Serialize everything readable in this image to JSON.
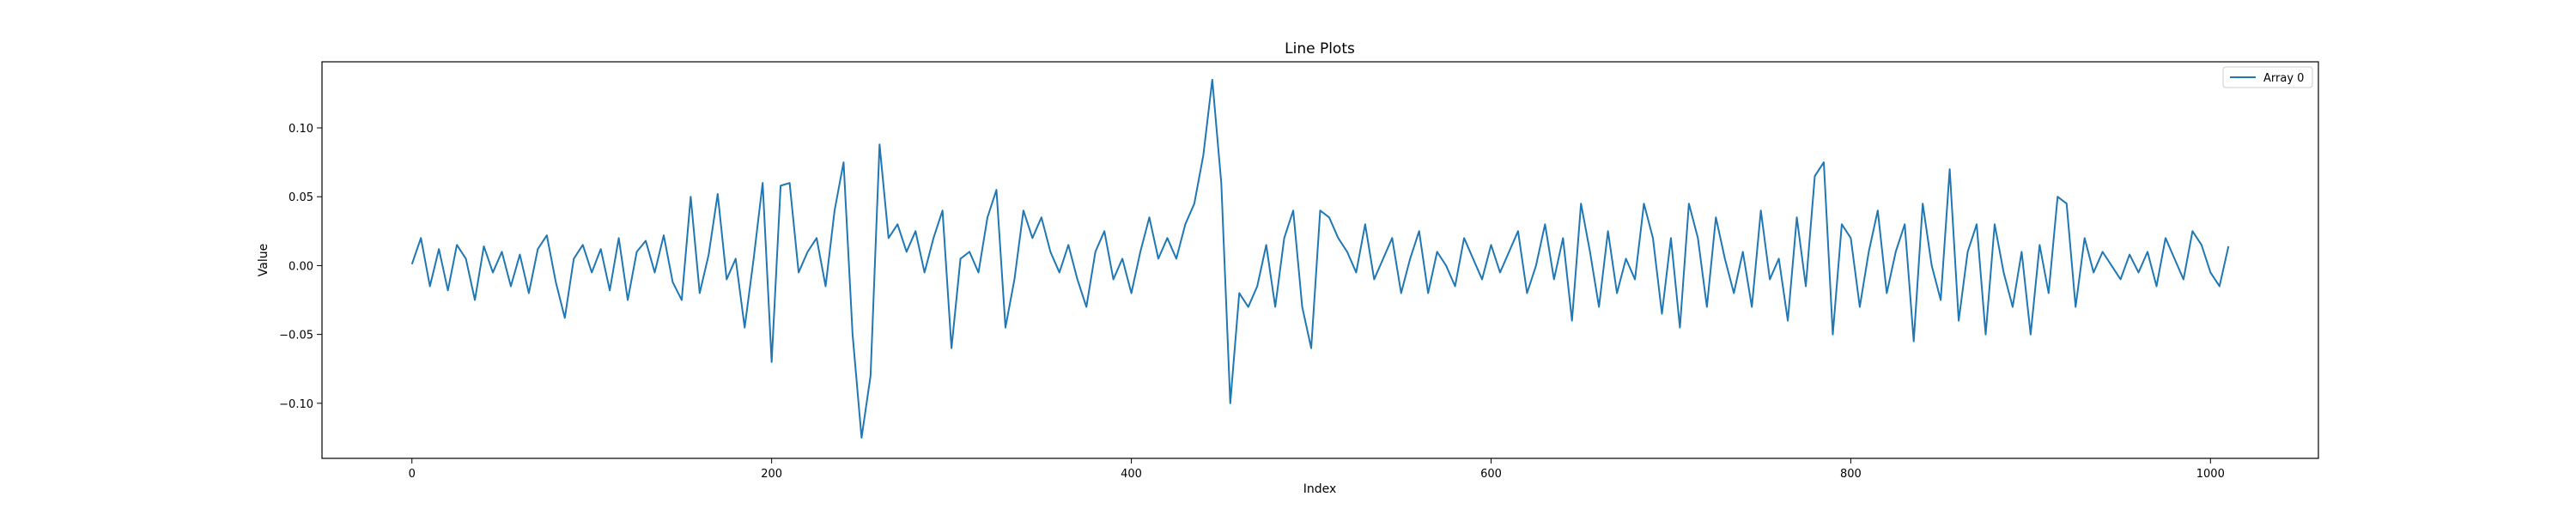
{
  "chart_data": {
    "type": "line",
    "title": "Line Plots",
    "xlabel": "Index",
    "ylabel": "Value",
    "xlim": [
      -50,
      1060
    ],
    "ylim": [
      -0.14,
      0.148
    ],
    "xticks": [
      0,
      200,
      400,
      600,
      800,
      1000
    ],
    "yticks": [
      -0.1,
      -0.05,
      0.0,
      0.05,
      0.1
    ],
    "xtick_labels": [
      "0",
      "200",
      "400",
      "600",
      "800",
      "1000"
    ],
    "ytick_labels": [
      "−0.10",
      "−0.05",
      "0.00",
      "0.05",
      "0.10"
    ],
    "grid": false,
    "legend_position": "top-right",
    "colors": {
      "line": "#1f77b4",
      "axes": "#000000",
      "legend_border": "#cccccc"
    },
    "series": [
      {
        "name": "Array 0",
        "x": [
          0,
          5,
          10,
          15,
          20,
          25,
          30,
          35,
          40,
          45,
          50,
          55,
          60,
          65,
          70,
          75,
          80,
          85,
          90,
          95,
          100,
          105,
          110,
          115,
          120,
          125,
          130,
          135,
          140,
          145,
          150,
          155,
          160,
          165,
          170,
          175,
          180,
          185,
          190,
          195,
          200,
          205,
          210,
          215,
          220,
          225,
          230,
          235,
          240,
          245,
          250,
          255,
          260,
          265,
          270,
          275,
          280,
          285,
          290,
          295,
          300,
          305,
          310,
          315,
          320,
          325,
          330,
          335,
          340,
          345,
          350,
          355,
          360,
          365,
          370,
          375,
          380,
          385,
          390,
          395,
          400,
          405,
          410,
          415,
          420,
          425,
          430,
          435,
          440,
          445,
          450,
          455,
          460,
          465,
          470,
          475,
          480,
          485,
          490,
          495,
          500,
          505,
          510,
          515,
          520,
          525,
          530,
          535,
          540,
          545,
          550,
          555,
          560,
          565,
          570,
          575,
          580,
          585,
          590,
          595,
          600,
          605,
          610,
          615,
          620,
          625,
          630,
          635,
          640,
          645,
          650,
          655,
          660,
          665,
          670,
          675,
          680,
          685,
          690,
          695,
          700,
          705,
          710,
          715,
          720,
          725,
          730,
          735,
          740,
          745,
          750,
          755,
          760,
          765,
          770,
          775,
          780,
          785,
          790,
          795,
          800,
          805,
          810,
          815,
          820,
          825,
          830,
          835,
          840,
          845,
          850,
          855,
          860,
          865,
          870,
          875,
          880,
          885,
          890,
          895,
          900,
          905,
          910,
          915,
          920,
          925,
          930,
          935,
          940,
          945,
          950,
          955,
          960,
          965,
          970,
          975,
          980,
          985,
          990,
          995,
          1000,
          1005,
          1010
        ],
        "y": [
          0.001,
          0.02,
          -0.015,
          0.012,
          -0.018,
          0.015,
          0.005,
          -0.025,
          0.014,
          -0.005,
          0.01,
          -0.015,
          0.008,
          -0.02,
          0.012,
          0.022,
          -0.012,
          -0.038,
          0.005,
          0.015,
          -0.005,
          0.012,
          -0.018,
          0.02,
          -0.025,
          0.01,
          0.018,
          -0.005,
          0.022,
          -0.012,
          -0.025,
          0.05,
          -0.02,
          0.008,
          0.052,
          -0.01,
          0.005,
          -0.045,
          0.005,
          0.06,
          -0.07,
          0.058,
          0.06,
          -0.005,
          0.01,
          0.02,
          -0.015,
          0.04,
          0.075,
          -0.05,
          -0.125,
          -0.08,
          0.088,
          0.02,
          0.03,
          0.01,
          0.025,
          -0.005,
          0.02,
          0.04,
          -0.06,
          0.005,
          0.01,
          -0.005,
          0.035,
          0.055,
          -0.045,
          -0.01,
          0.04,
          0.02,
          0.035,
          0.01,
          -0.005,
          0.015,
          -0.01,
          -0.03,
          0.01,
          0.025,
          -0.01,
          0.005,
          -0.02,
          0.01,
          0.035,
          0.005,
          0.02,
          0.005,
          0.03,
          0.045,
          0.08,
          0.135,
          0.06,
          -0.1,
          -0.02,
          -0.03,
          -0.015,
          0.015,
          -0.03,
          0.02,
          0.04,
          -0.03,
          -0.06,
          0.04,
          0.035,
          0.02,
          0.01,
          -0.005,
          0.03,
          -0.01,
          0.005,
          0.02,
          -0.02,
          0.005,
          0.025,
          -0.02,
          0.01,
          0.0,
          -0.015,
          0.02,
          0.005,
          -0.01,
          0.015,
          -0.005,
          0.01,
          0.025,
          -0.02,
          0.0,
          0.03,
          -0.01,
          0.02,
          -0.04,
          0.045,
          0.01,
          -0.03,
          0.025,
          -0.02,
          0.005,
          -0.01,
          0.045,
          0.02,
          -0.035,
          0.02,
          -0.045,
          0.045,
          0.02,
          -0.03,
          0.035,
          0.005,
          -0.02,
          0.01,
          -0.03,
          0.04,
          -0.01,
          0.005,
          -0.04,
          0.035,
          -0.015,
          0.065,
          0.075,
          -0.05,
          0.03,
          0.02,
          -0.03,
          0.01,
          0.04,
          -0.02,
          0.01,
          0.03,
          -0.055,
          0.045,
          0.0,
          -0.025,
          0.07,
          -0.04,
          0.01,
          0.03,
          -0.05,
          0.03,
          -0.005,
          -0.03,
          0.01,
          -0.05,
          0.015,
          -0.02,
          0.05,
          0.045,
          -0.03,
          0.02,
          -0.005,
          0.01,
          0.0,
          -0.01,
          0.008,
          -0.005,
          0.01,
          -0.015,
          0.02,
          0.005,
          -0.01,
          0.025,
          0.015,
          -0.005,
          -0.015,
          0.014
        ]
      }
    ]
  }
}
